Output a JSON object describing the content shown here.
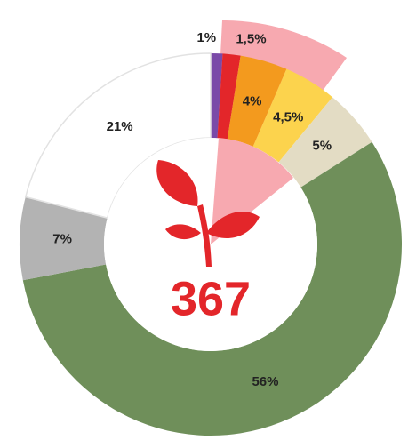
{
  "chart_data": {
    "type": "donut",
    "center_label": "367",
    "categories": [
      null,
      null,
      null,
      null,
      null,
      null,
      null,
      null
    ],
    "values": [
      1,
      1.5,
      4,
      4.5,
      5,
      56,
      7,
      21
    ],
    "value_labels": [
      "1%",
      "1,5%",
      "4%",
      "4,5%",
      "5%",
      "56%",
      "7%",
      "21%"
    ],
    "colors": [
      "#7a4aa8",
      "#e3262a",
      "#f39a1e",
      "#fcd34d",
      "#e3dcc4",
      "#6f8f5a",
      "#b3b3b3",
      "#ffffff"
    ]
  }
}
